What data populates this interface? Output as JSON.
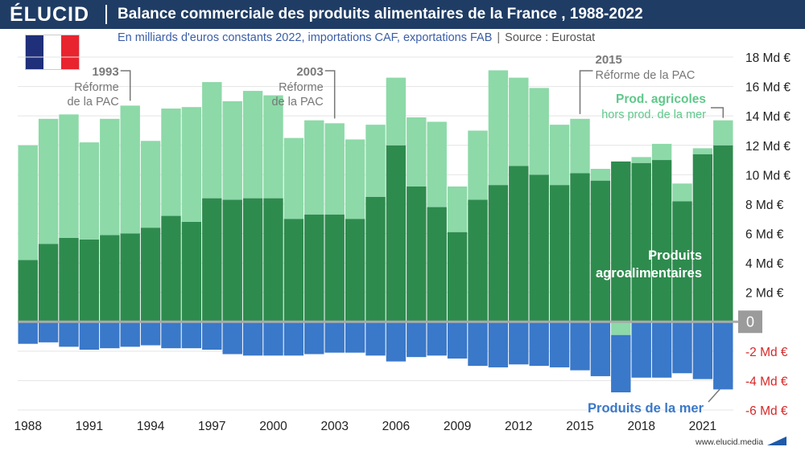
{
  "brand": {
    "logo_text": "ÉLUCID",
    "url": "www.elucid.media"
  },
  "header": {
    "title": "Balance commerciale des produits alimentaires de la France , 1988-2022",
    "subtitle": "En milliards d'euros constants 2022, importations CAF, exportations FAB",
    "source": "Source : Eurostat"
  },
  "flag": {
    "colors": [
      "#1f2f7a",
      "#ffffff",
      "#e8242e"
    ]
  },
  "colors": {
    "header_bg": "#1f3c64",
    "agroalimentaires": "#2e8b4e",
    "agricoles": "#8dd9a8",
    "mer": "#3a78c9",
    "zero_line": "#aaaaaa",
    "negative_labels": "#d62828"
  },
  "chart_data": {
    "type": "bar",
    "stacked": true,
    "ylim": [
      -6,
      18
    ],
    "yticks": [
      {
        "value": 18,
        "label": "18 Md €"
      },
      {
        "value": 16,
        "label": "16 Md €"
      },
      {
        "value": 14,
        "label": "14 Md €"
      },
      {
        "value": 12,
        "label": "12 Md €"
      },
      {
        "value": 10,
        "label": "10 Md €"
      },
      {
        "value": 8,
        "label": "8 Md €"
      },
      {
        "value": 6,
        "label": "6 Md €"
      },
      {
        "value": 4,
        "label": "4 Md €"
      },
      {
        "value": 2,
        "label": "2 Md €"
      },
      {
        "value": 0,
        "label": "0"
      },
      {
        "value": -2,
        "label": "-2 Md €"
      },
      {
        "value": -4,
        "label": "-4 Md €"
      },
      {
        "value": -6,
        "label": "-6 Md €"
      }
    ],
    "x": [
      1988,
      1989,
      1990,
      1991,
      1992,
      1993,
      1994,
      1995,
      1996,
      1997,
      1998,
      1999,
      2000,
      2001,
      2002,
      2003,
      2004,
      2005,
      2006,
      2007,
      2008,
      2009,
      2010,
      2011,
      2012,
      2013,
      2014,
      2015,
      2016,
      2017,
      2018,
      2019,
      2020,
      2021,
      2022
    ],
    "xtick_labels": [
      "1988",
      "1991",
      "1994",
      "1997",
      "2000",
      "2003",
      "2006",
      "2009",
      "2012",
      "2015",
      "2018",
      "2021"
    ],
    "series": [
      {
        "name": "Produits agroalimentaires",
        "key": "agroalimentaires",
        "values": [
          4.2,
          5.3,
          5.7,
          5.6,
          5.9,
          6.0,
          6.4,
          7.2,
          6.8,
          8.4,
          8.3,
          8.4,
          8.4,
          7.0,
          7.3,
          7.3,
          7.0,
          8.5,
          12.0,
          9.2,
          7.8,
          6.1,
          8.3,
          9.3,
          10.6,
          10.0,
          9.3,
          10.1,
          9.6,
          10.9,
          10.8,
          11.0,
          8.2,
          11.4,
          12.0
        ]
      },
      {
        "name": "Prod. agricoles hors prod. de la mer",
        "key": "agricoles",
        "values": [
          7.8,
          8.5,
          8.4,
          6.6,
          7.9,
          8.7,
          5.9,
          7.3,
          7.8,
          7.9,
          6.7,
          7.3,
          7.0,
          5.5,
          6.4,
          6.2,
          5.4,
          4.9,
          4.6,
          4.7,
          5.8,
          3.1,
          4.7,
          7.8,
          6.0,
          5.9,
          4.1,
          3.7,
          0.8,
          -0.9,
          0.4,
          1.1,
          1.2,
          0.4,
          1.7
        ]
      },
      {
        "name": "Produits de la mer",
        "key": "mer",
        "values": [
          -1.5,
          -1.4,
          -1.7,
          -1.9,
          -1.8,
          -1.7,
          -1.6,
          -1.8,
          -1.8,
          -1.9,
          -2.2,
          -2.3,
          -2.3,
          -2.3,
          -2.2,
          -2.1,
          -2.1,
          -2.3,
          -2.7,
          -2.4,
          -2.3,
          -2.5,
          -3.0,
          -3.1,
          -2.9,
          -3.0,
          -3.1,
          -3.3,
          -3.7,
          -3.9,
          -3.8,
          -3.8,
          -3.5,
          -3.9,
          -4.6
        ]
      }
    ],
    "annotations": [
      {
        "year": 1993,
        "year_label": "1993",
        "text": [
          "Réforme",
          "de la PAC"
        ]
      },
      {
        "year": 2003,
        "year_label": "2003",
        "text": [
          "Réforme",
          "de la PAC"
        ]
      },
      {
        "year": 2015,
        "year_label": "2015",
        "text": [
          "Réforme de la PAC"
        ]
      }
    ],
    "series_labels": {
      "agricoles": [
        "Prod. agricoles",
        "hors prod. de la mer"
      ],
      "agroalimentaires": [
        "Produits",
        "agroalimentaires"
      ],
      "mer": [
        "Produits de la mer"
      ]
    }
  }
}
